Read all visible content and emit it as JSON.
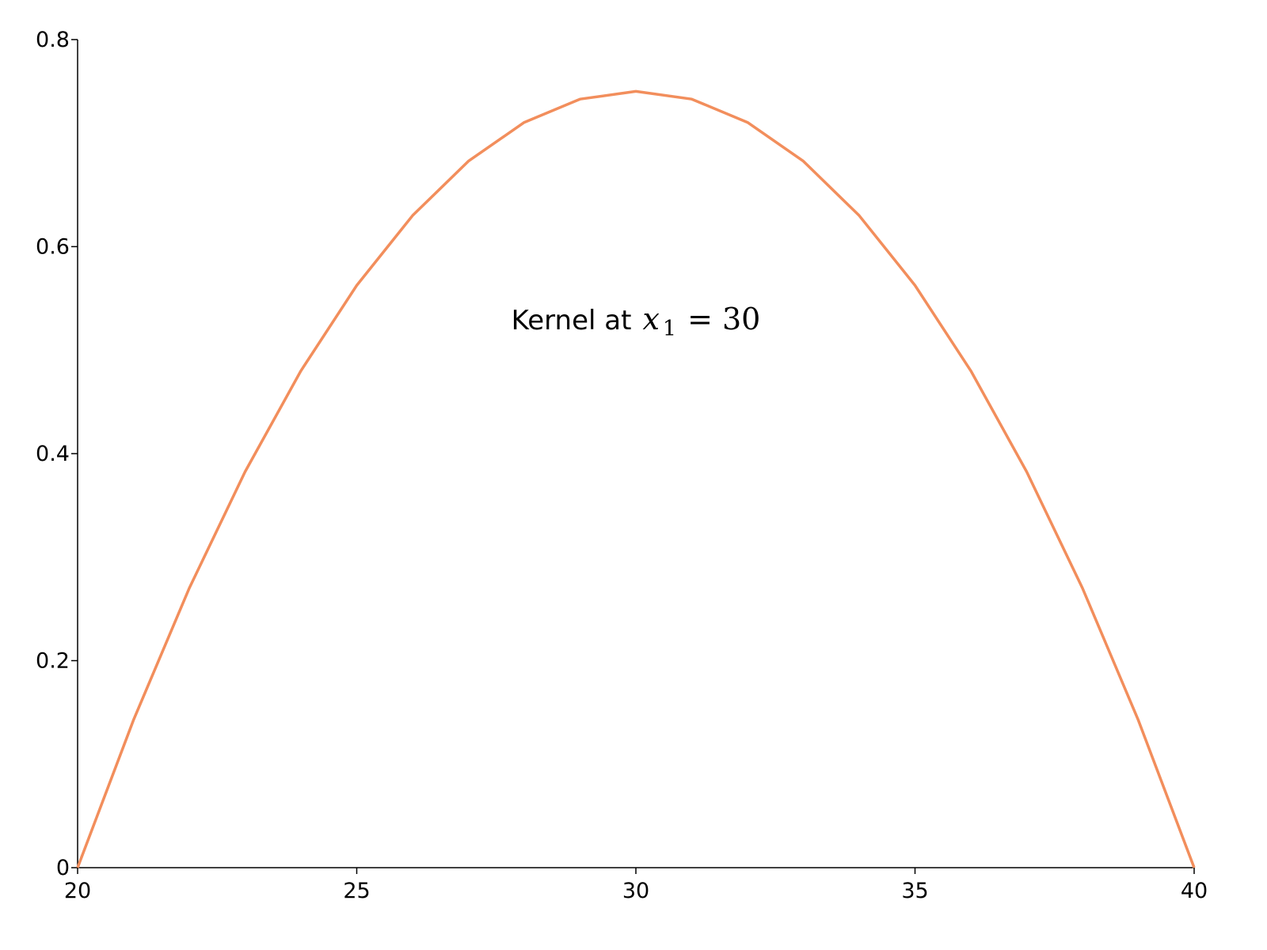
{
  "chart_data": {
    "type": "line",
    "title": "",
    "xlabel": "",
    "ylabel": "",
    "xlim": [
      20,
      40
    ],
    "ylim": [
      0,
      0.8
    ],
    "x_ticks": [
      20,
      25,
      30,
      35,
      40
    ],
    "y_ticks": [
      0,
      0.2,
      0.4,
      0.6,
      0.8
    ],
    "x_tick_labels": [
      "20",
      "25",
      "30",
      "35",
      "40"
    ],
    "y_tick_labels": [
      "0",
      "0.2",
      "0.4",
      "0.6",
      "0.8"
    ],
    "grid": false,
    "series": [
      {
        "color": "#f28e5c",
        "x": [
          20,
          21,
          22,
          23,
          24,
          25,
          26,
          27,
          28,
          29,
          30,
          31,
          32,
          33,
          34,
          35,
          36,
          37,
          38,
          39,
          40
        ],
        "y": [
          0,
          0.1425,
          0.27,
          0.3825,
          0.48,
          0.5625,
          0.63,
          0.6825,
          0.72,
          0.7425,
          0.75,
          0.7425,
          0.72,
          0.6825,
          0.63,
          0.5625,
          0.48,
          0.3825,
          0.27,
          0.1425,
          0
        ]
      }
    ],
    "annotation": {
      "text": "Kernel at",
      "math_var": "x",
      "math_sub": "1",
      "math_rest": "= 30",
      "x": 30,
      "y": 0.52
    }
  }
}
